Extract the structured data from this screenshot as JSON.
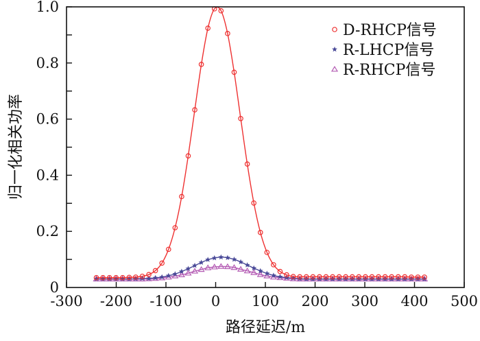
{
  "chart_data": {
    "type": "line",
    "xlabel": "路径延迟/m",
    "ylabel": "归一化相关功率",
    "xlim": [
      -300,
      500
    ],
    "ylim": [
      0,
      1.0
    ],
    "xticks": [
      -300,
      -200,
      -100,
      0,
      100,
      200,
      300,
      400,
      500
    ],
    "yticks": [
      0,
      0.2,
      0.4,
      0.6,
      0.8,
      1.0
    ],
    "ytick_labels": [
      "0",
      "0.2",
      "0.4",
      "0.6",
      "0.8",
      "1.0"
    ],
    "grid": false,
    "legend_position": "top-right",
    "x": [
      -240,
      -226.8,
      -213.6,
      -200.4,
      -187.2,
      -174,
      -160.8,
      -147.6,
      -134.4,
      -121.2,
      -108,
      -94.8,
      -81.6,
      -68.4,
      -55.2,
      -42,
      -28.8,
      -15.6,
      -2.4,
      10.8,
      24,
      37.2,
      50.4,
      63.6,
      76.8,
      90,
      103.2,
      116.4,
      129.6,
      142.8,
      156,
      169.2,
      182.4,
      195.6,
      208.8,
      222,
      235.2,
      248.4,
      261.6,
      274.8,
      288,
      301.2,
      314.4,
      327.6,
      340.8,
      354,
      367.2,
      380.4,
      393.6,
      406.8,
      420
    ],
    "series": [
      {
        "name": "D-RHCP信号",
        "color": "#ee3030",
        "marker": "circle",
        "values": [
          0.035,
          0.035,
          0.035,
          0.035,
          0.035,
          0.036,
          0.037,
          0.04,
          0.046,
          0.06,
          0.087,
          0.136,
          0.213,
          0.324,
          0.469,
          0.633,
          0.795,
          0.924,
          0.993,
          0.986,
          0.905,
          0.767,
          0.602,
          0.44,
          0.301,
          0.196,
          0.125,
          0.081,
          0.057,
          0.045,
          0.039,
          0.038,
          0.038,
          0.038,
          0.038,
          0.038,
          0.038,
          0.038,
          0.038,
          0.038,
          0.038,
          0.038,
          0.038,
          0.038,
          0.038,
          0.038,
          0.038,
          0.038,
          0.037,
          0.037,
          0.037
        ]
      },
      {
        "name": "R-LHCP信号",
        "color": "#4a4a98",
        "marker": "star",
        "values": [
          0.03,
          0.03,
          0.03,
          0.03,
          0.03,
          0.03,
          0.031,
          0.032,
          0.032,
          0.034,
          0.037,
          0.042,
          0.048,
          0.057,
          0.067,
          0.078,
          0.089,
          0.099,
          0.105,
          0.108,
          0.106,
          0.1,
          0.091,
          0.08,
          0.069,
          0.059,
          0.05,
          0.043,
          0.038,
          0.035,
          0.033,
          0.031,
          0.03,
          0.03,
          0.03,
          0.03,
          0.03,
          0.03,
          0.03,
          0.03,
          0.03,
          0.03,
          0.03,
          0.03,
          0.03,
          0.03,
          0.03,
          0.03,
          0.03,
          0.03,
          0.03
        ]
      },
      {
        "name": "R-RHCP信号",
        "color": "#b45cb4",
        "marker": "triangle",
        "values": [
          0.03,
          0.03,
          0.03,
          0.03,
          0.03,
          0.03,
          0.03,
          0.03,
          0.031,
          0.032,
          0.034,
          0.037,
          0.041,
          0.045,
          0.051,
          0.058,
          0.064,
          0.07,
          0.073,
          0.075,
          0.074,
          0.071,
          0.065,
          0.059,
          0.053,
          0.046,
          0.041,
          0.037,
          0.035,
          0.033,
          0.031,
          0.03,
          0.03,
          0.03,
          0.03,
          0.03,
          0.03,
          0.03,
          0.03,
          0.03,
          0.03,
          0.03,
          0.03,
          0.03,
          0.03,
          0.03,
          0.03,
          0.03,
          0.03,
          0.03,
          0.03
        ]
      }
    ]
  }
}
